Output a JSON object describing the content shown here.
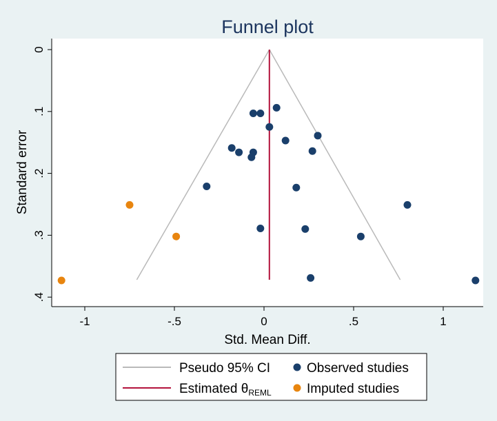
{
  "chart_data": {
    "type": "scatter",
    "title": "Funnel plot",
    "xlabel": "Std. Mean Diff.",
    "ylabel": "Standard error",
    "xlim": [
      -1.15,
      1.2
    ],
    "ylim": [
      0,
      0.4
    ],
    "y_reversed": true,
    "x_ticks": [
      -1,
      -0.5,
      0,
      0.5,
      1
    ],
    "x_tick_labels": [
      "-1",
      "-.5",
      "0",
      ".5",
      "1"
    ],
    "y_ticks": [
      0,
      0.1,
      0.2,
      0.3,
      0.4
    ],
    "y_tick_labels": [
      "0",
      ".1",
      ".2",
      ".3",
      ".4"
    ],
    "grid": false,
    "legend_position": "bottom",
    "estimated_theta": 0.03,
    "pseudo_ci": {
      "apex": [
        0.03,
        0
      ],
      "lower": [
        [
          -0.71,
          0.372
        ],
        [
          0.76,
          0.372
        ]
      ]
    },
    "series": [
      {
        "name": "Observed studies",
        "color": "#1a3f6b",
        "points": [
          [
            -0.06,
            0.103
          ],
          [
            -0.02,
            0.103
          ],
          [
            0.07,
            0.094
          ],
          [
            0.03,
            0.125
          ],
          [
            0.12,
            0.147
          ],
          [
            0.3,
            0.139
          ],
          [
            -0.18,
            0.159
          ],
          [
            -0.14,
            0.166
          ],
          [
            -0.06,
            0.166
          ],
          [
            -0.07,
            0.174
          ],
          [
            0.27,
            0.164
          ],
          [
            -0.32,
            0.221
          ],
          [
            0.18,
            0.223
          ],
          [
            0.8,
            0.251
          ],
          [
            -0.02,
            0.289
          ],
          [
            0.23,
            0.29
          ],
          [
            0.54,
            0.302
          ],
          [
            0.26,
            0.369
          ],
          [
            1.18,
            0.373
          ]
        ]
      },
      {
        "name": "Imputed studies",
        "color": "#e8850f",
        "points": [
          [
            -0.75,
            0.251
          ],
          [
            -0.49,
            0.302
          ],
          [
            -1.13,
            0.373
          ]
        ]
      }
    ],
    "legend": [
      {
        "label": "Pseudo 95% CI",
        "symbol": "line",
        "color": "#b9b9b9"
      },
      {
        "label": "Observed studies",
        "symbol": "dot",
        "color": "#1a3f6b"
      },
      {
        "label": "Estimated θ",
        "label_sub": "REML",
        "symbol": "line",
        "color": "#b3123b"
      },
      {
        "label": "Imputed studies",
        "symbol": "dot",
        "color": "#e8850f"
      }
    ]
  }
}
